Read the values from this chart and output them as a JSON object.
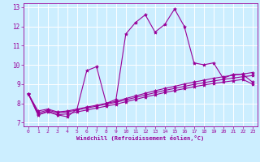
{
  "title": "",
  "xlabel": "Windchill (Refroidissement éolien,°C)",
  "ylabel": "",
  "bg_color": "#cceeff",
  "line_color": "#990099",
  "grid_color": "#ffffff",
  "xlim": [
    -0.5,
    23.5
  ],
  "ylim": [
    6.8,
    13.2
  ],
  "xticks": [
    0,
    1,
    2,
    3,
    4,
    5,
    6,
    7,
    8,
    9,
    10,
    11,
    12,
    13,
    14,
    15,
    16,
    17,
    18,
    19,
    20,
    21,
    22,
    23
  ],
  "yticks": [
    7,
    8,
    9,
    10,
    11,
    12,
    13
  ],
  "series": [
    [
      8.5,
      7.4,
      7.6,
      7.4,
      7.3,
      7.7,
      9.7,
      9.9,
      8.0,
      8.2,
      11.6,
      12.2,
      12.6,
      11.7,
      12.1,
      12.9,
      12.0,
      10.1,
      10.0,
      10.1,
      9.3,
      9.5,
      9.5,
      9.1
    ],
    [
      8.5,
      7.6,
      7.7,
      7.55,
      7.6,
      7.7,
      7.8,
      7.9,
      8.0,
      8.1,
      8.25,
      8.38,
      8.52,
      8.65,
      8.77,
      8.88,
      9.0,
      9.1,
      9.2,
      9.3,
      9.38,
      9.46,
      9.52,
      9.6
    ],
    [
      8.5,
      7.5,
      7.65,
      7.5,
      7.55,
      7.65,
      7.75,
      7.85,
      7.95,
      8.05,
      8.18,
      8.3,
      8.43,
      8.55,
      8.67,
      8.77,
      8.88,
      8.98,
      9.07,
      9.16,
      9.24,
      9.31,
      9.38,
      9.44
    ],
    [
      8.5,
      7.4,
      7.55,
      7.4,
      7.45,
      7.55,
      7.65,
      7.75,
      7.85,
      7.95,
      8.08,
      8.2,
      8.33,
      8.44,
      8.56,
      8.66,
      8.76,
      8.86,
      8.95,
      9.03,
      9.1,
      9.17,
      9.24,
      9.0
    ]
  ]
}
